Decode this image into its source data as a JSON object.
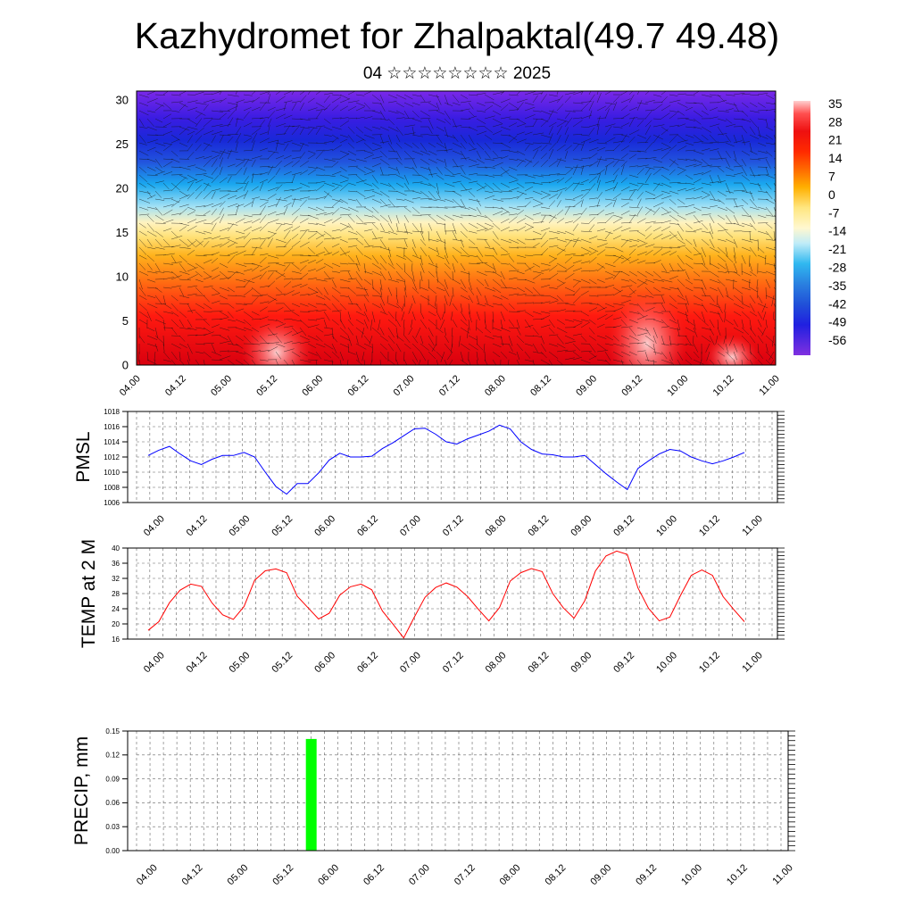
{
  "header": {
    "title": "Kazhydromet for Zhalpaktal(49.7 49.48)",
    "subtitle": "04 ☆☆☆☆☆☆☆☆ 2025"
  },
  "chart_data": [
    {
      "type": "heatmap",
      "name": "vertical-section",
      "x_ticks": [
        "04.00",
        "04.12",
        "05.00",
        "05.12",
        "06.00",
        "06.12",
        "07.00",
        "07.12",
        "08.00",
        "08.12",
        "09.00",
        "09.12",
        "10.00",
        "10.12",
        "11.00"
      ],
      "y_ticks": [
        0,
        5,
        10,
        15,
        20,
        25,
        30
      ],
      "ylim": [
        0,
        31
      ],
      "colorbar_labels": [
        35,
        28,
        21,
        14,
        7,
        0,
        -7,
        -14,
        -21,
        -28,
        -35,
        -42,
        -49,
        -56
      ],
      "colorbar_range": [
        -63,
        42
      ],
      "overlay": "wind vectors"
    },
    {
      "type": "line",
      "name": "pmsl",
      "ylabel": "PMSL",
      "ylim": [
        1006,
        1018
      ],
      "y_ticks": [
        1006,
        1008,
        1010,
        1012,
        1014,
        1016,
        1018
      ],
      "x_ticks": [
        "04.00",
        "04.12",
        "05.00",
        "05.12",
        "06.00",
        "06.12",
        "07.00",
        "07.12",
        "08.00",
        "08.12",
        "09.00",
        "09.12",
        "10.00",
        "10.12",
        "11.00"
      ],
      "color": "#0000ff",
      "values": [
        1012.2,
        1012.9,
        1013.4,
        1012.4,
        1011.5,
        1011.0,
        1011.7,
        1012.2,
        1012.2,
        1012.6,
        1012.0,
        1010.0,
        1008.1,
        1007.1,
        1008.5,
        1008.5,
        1009.9,
        1011.6,
        1012.5,
        1012.0,
        1012.0,
        1012.1,
        1013.1,
        1013.9,
        1014.8,
        1015.7,
        1015.8,
        1015.0,
        1014.0,
        1013.7,
        1014.4,
        1014.9,
        1015.4,
        1016.2,
        1015.7,
        1014.0,
        1013.0,
        1012.4,
        1012.3,
        1012.0,
        1012.0,
        1012.2,
        1011.0,
        1009.8,
        1008.7,
        1007.7,
        1010.5,
        1011.5,
        1012.4,
        1013.0,
        1012.8,
        1012.0,
        1011.5,
        1011.1,
        1011.5,
        1012.0,
        1012.6
      ]
    },
    {
      "type": "line",
      "name": "temp-2m",
      "ylabel": "TEMP at 2 M",
      "ylim": [
        16,
        40
      ],
      "y_ticks": [
        16,
        20,
        24,
        28,
        32,
        36,
        40
      ],
      "x_ticks": [
        "04.00",
        "04.12",
        "05.00",
        "05.12",
        "06.00",
        "06.12",
        "07.00",
        "07.12",
        "08.00",
        "08.12",
        "09.00",
        "09.12",
        "10.00",
        "10.12",
        "11.00"
      ],
      "color": "#ff0000",
      "values": [
        18.3,
        20.6,
        25.6,
        28.9,
        30.5,
        29.9,
        25.5,
        22.4,
        21.2,
        24.6,
        31.5,
        34.0,
        34.5,
        33.5,
        27.3,
        24.3,
        21.3,
        22.8,
        27.6,
        29.8,
        30.5,
        29.0,
        23.4,
        19.9,
        16.3,
        21.8,
        27.0,
        29.6,
        30.8,
        29.7,
        27.2,
        23.9,
        20.8,
        24.3,
        31.3,
        33.5,
        34.6,
        33.8,
        28.0,
        24.2,
        21.5,
        26.1,
        33.9,
        37.9,
        39.2,
        38.3,
        29.5,
        24.1,
        20.8,
        21.8,
        27.5,
        32.8,
        34.2,
        32.8,
        27.2,
        23.8,
        20.6
      ]
    },
    {
      "type": "bar",
      "name": "precip",
      "ylabel": "PRECIP, mm",
      "ylim": [
        0,
        0.15
      ],
      "y_ticks": [
        "0.00",
        "0.03",
        "0.06",
        "0.09",
        "0.12",
        "0.15"
      ],
      "x_ticks": [
        "04.00",
        "04.12",
        "05.00",
        "05.12",
        "06.00",
        "06.12",
        "07.00",
        "07.12",
        "08.00",
        "08.12",
        "09.00",
        "09.12",
        "10.00",
        "10.12",
        "11.00"
      ],
      "color": "#00ff00",
      "bars": [
        {
          "x": "05.21",
          "value": 0.14
        }
      ]
    }
  ]
}
